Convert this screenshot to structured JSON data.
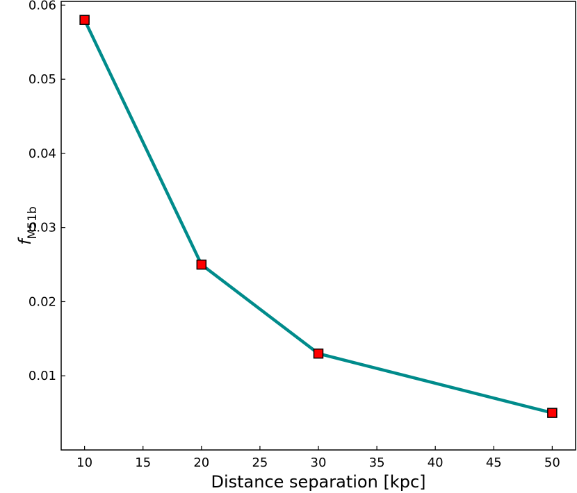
{
  "chart_data": {
    "type": "line",
    "title": "",
    "xlabel": "Distance separation [kpc]",
    "ylabel": {
      "main": "f",
      "subscript": "M51b"
    },
    "x": [
      10,
      20,
      30,
      50
    ],
    "series": [
      {
        "values": [
          0.058,
          0.025,
          0.013,
          0.005
        ]
      }
    ],
    "xlim": [
      8,
      52
    ],
    "ylim": [
      0,
      0.0605
    ],
    "xticks": [
      10,
      15,
      20,
      25,
      30,
      35,
      40,
      45,
      50
    ],
    "xtick_labels": [
      "10",
      "15",
      "20",
      "25",
      "30",
      "35",
      "40",
      "45",
      "50"
    ],
    "yticks": [
      0.01,
      0.02,
      0.03,
      0.04,
      0.05,
      0.06
    ],
    "ytick_labels": [
      "0.01",
      "0.02",
      "0.03",
      "0.04",
      "0.05",
      "0.06"
    ],
    "grid": false,
    "legend": "none",
    "colors": {
      "line": "#008b8b",
      "marker_fill": "#ff0000",
      "marker_edge": "#000000"
    },
    "marker": "square"
  }
}
